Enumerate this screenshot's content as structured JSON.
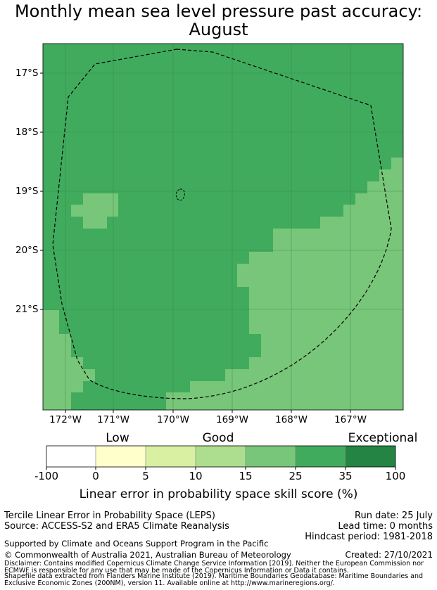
{
  "title_line1": "Monthly mean sea level pressure past accuracy:",
  "title_line2": "August",
  "lat_labels": [
    "17°S",
    "18°S",
    "19°S",
    "20°S",
    "21°S"
  ],
  "lon_labels": [
    "172°W",
    "171°W",
    "170°W",
    "169°W",
    "168°W",
    "167°W"
  ],
  "category_labels": [
    "Low",
    "Good",
    "Exceptional"
  ],
  "colorbar": {
    "ticks": [
      "-100",
      "0",
      "5",
      "10",
      "15",
      "25",
      "35",
      "100"
    ],
    "colors": [
      "#ffffff",
      "#ffffcc",
      "#d9f0a3",
      "#addd8e",
      "#78c679",
      "#41ab5d",
      "#238443"
    ],
    "label": "Linear error in probability space skill score (%)"
  },
  "map_colors": {
    "level_15_25": "#78c679",
    "level_25_35": "#41ab5d"
  },
  "info": {
    "method": "Tercile Linear Error in Probability Space (LEPS)",
    "source": "Source: ACCESS-S2 and ERA5 Climate Reanalysis",
    "run_date": "Run date: 25 July",
    "lead_time": "Lead time: 0 months",
    "hindcast": "Hindcast period: 1981-2018",
    "support": "Supported by Climate and Oceans Support Program in the Pacific",
    "copyright": "© Commonwealth of Australia 2021, Australian Bureau of Meteorology",
    "created": "Created: 27/10/2021",
    "disclaimer1": "Disclaimer: Contains modified Copernicus Climate Change Service Information [2019]. Neither the European Commission nor",
    "disclaimer2": "ECMWF is responsible for any use that may be made of the Copernicus Information or Data it contains.",
    "shapefile1": "Shapefile data extracted from Flanders Marine Institute (2019). Maritime Boundaries Geodatabase: Maritime Boundaries and",
    "shapefile2": "Exclusive Economic Zones (200NM), version 11. Available online at http://www.marineregions.org/."
  }
}
